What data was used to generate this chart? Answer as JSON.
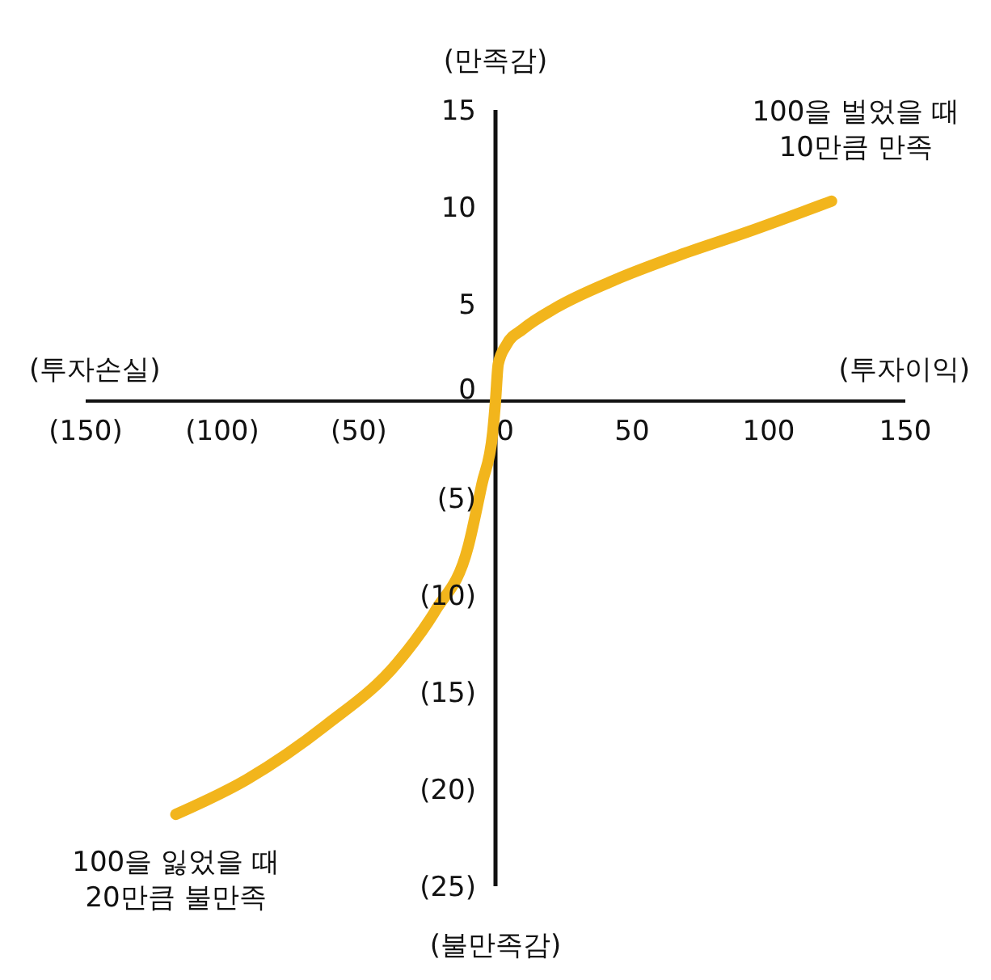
{
  "chart_data": {
    "type": "line",
    "ylabel": "(만족감)",
    "xlabel": "(투자이익)",
    "annotations": [
      "(투자손실)",
      "(불만족감)",
      {
        "text": "100을 벌었을 때\n10만큼 만족",
        "x": 123,
        "y": 10.3
      },
      {
        "text": "100을 잃었을 때\n20만큼 불만족",
        "x": -117,
        "y": -21.3
      }
    ],
    "x": [
      -117,
      -91,
      -62,
      -36,
      -22,
      -10,
      -5,
      -1,
      0,
      1,
      4,
      10,
      22,
      43,
      67,
      92,
      123
    ],
    "series": [
      {
        "color": "#f2b51c",
        "values": [
          -21.3,
          -19.5,
          -16.7,
          -13.5,
          -10.8,
          -7.5,
          -4.3,
          -1.6,
          0,
          1.9,
          2.9,
          3.7,
          4.8,
          6.2,
          7.5,
          8.7,
          10.3
        ]
      }
    ],
    "xlim": [
      -150,
      150
    ],
    "xticks": [
      {
        "value": -150,
        "label": "(150)"
      },
      {
        "value": -100,
        "label": "(100)"
      },
      {
        "value": -50,
        "label": "(50)"
      },
      0,
      50,
      100,
      150
    ],
    "ylim": [
      -25,
      15
    ],
    "yticks": [
      15,
      10,
      5,
      0,
      {
        "value": -5,
        "label": "(5)"
      },
      {
        "value": -10,
        "label": "(10)"
      },
      {
        "value": -15,
        "label": "(15)"
      },
      {
        "value": -20,
        "label": "(20)"
      },
      {
        "value": -25,
        "label": "(25)"
      }
    ],
    "grid": false,
    "legend": false,
    "marker": "none",
    "line_style": "solid"
  }
}
